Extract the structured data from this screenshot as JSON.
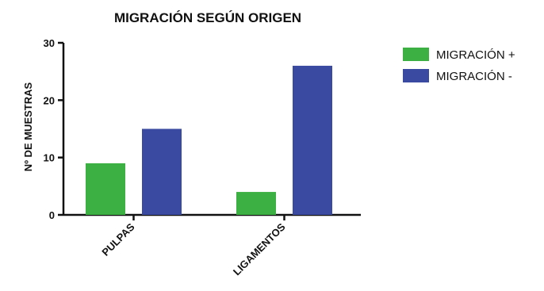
{
  "chart_data": {
    "type": "bar",
    "title": "MIGRACIÓN SEGÚN ORIGEN",
    "xlabel": "",
    "ylabel": "Nº DE MUESTRAS",
    "categories": [
      "PULPAS",
      "LIGAMENTOS"
    ],
    "series": [
      {
        "name": "MIGRACIÓN +",
        "values": [
          9,
          4
        ],
        "color": "#3cb043"
      },
      {
        "name": "MIGRACIÓN -",
        "values": [
          15,
          26
        ],
        "color": "#3a4aa0"
      }
    ],
    "ylim": [
      0,
      30
    ],
    "yticks": [
      "0",
      "10",
      "20",
      "30"
    ],
    "grid": false,
    "legend_position": "right"
  }
}
